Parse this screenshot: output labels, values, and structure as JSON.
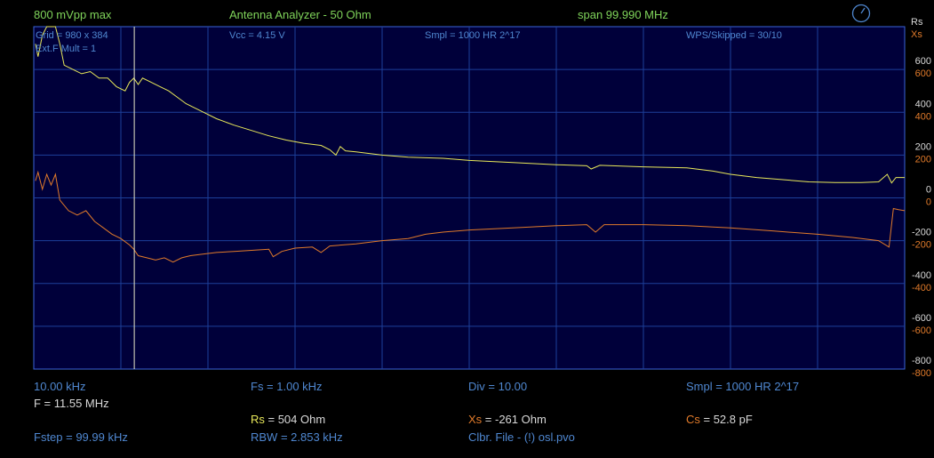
{
  "header": {
    "level": "800 mVpp max",
    "title": "Antenna Analyzer - 50 Ohm",
    "span": "span 99.990 MHz"
  },
  "overlay": {
    "grid_size": "Grid = 980 x 384",
    "ext_mult": "Ext.F Mult = 1",
    "vcc": "Vcc = 4.15 V",
    "smpl": "Smpl = 1000 HR 2^17",
    "wps": "WPS/Skipped  = 30/10"
  },
  "footer": {
    "start_freq": "10.00 kHz",
    "fs": "Fs = 1.00 kHz",
    "div": "Div = 10.00",
    "smpl": "Smpl = 1000 HR  2^17",
    "cursor_freq": "F = 11.55 MHz",
    "rs_label": "Rs",
    "rs_value": " = 504 Ohm",
    "xs_label": "Xs",
    "xs_value": " = -261 Ohm",
    "cs_label": "Cs",
    "cs_value": " = 52.8 pF",
    "fstep": "Fstep = 99.99 kHz",
    "rbw": "RBW = 2.853 kHz",
    "calibration": "Clbr. File - (!) osl.pvo"
  },
  "axis": {
    "rs_title": "Rs",
    "xs_title": "Xs"
  },
  "colors": {
    "background": "#000000",
    "plot_bg": "#00003a",
    "grid": "#1d3f9a",
    "border": "#3a64d8",
    "rs_trace": "#e8e85a",
    "xs_trace": "#e07a2a",
    "cursor": "#e8e8c8",
    "rs_axis": "#d8d8d8",
    "xs_axis": "#e07a2a"
  },
  "icons": {
    "corner": "gauge-icon"
  },
  "chart_data": {
    "type": "line",
    "x": {
      "min": 0.01,
      "max": 100.0,
      "unit": "MHz",
      "divisions": 10
    },
    "y": {
      "min": -800,
      "max": 800,
      "divisions": 8
    },
    "ticks_rs": [
      "600",
      "400",
      "200",
      "0",
      "-200",
      "-400",
      "-600",
      "-800"
    ],
    "ticks_xs": [
      "600",
      "400",
      "200",
      "0",
      "-200",
      "-400",
      "-600",
      "-800"
    ],
    "cursor_x": 11.55,
    "series": [
      {
        "name": "Rs",
        "color": "#e8e85a",
        "points": [
          [
            0.2,
            720
          ],
          [
            0.5,
            660
          ],
          [
            1.0,
            760
          ],
          [
            1.5,
            800
          ],
          [
            2.5,
            800
          ],
          [
            3.0,
            720
          ],
          [
            3.5,
            620
          ],
          [
            4.5,
            600
          ],
          [
            5.5,
            580
          ],
          [
            6.5,
            590
          ],
          [
            7.5,
            560
          ],
          [
            8.5,
            560
          ],
          [
            9.5,
            520
          ],
          [
            10.5,
            500
          ],
          [
            11.0,
            540
          ],
          [
            11.5,
            560
          ],
          [
            12.0,
            530
          ],
          [
            12.5,
            560
          ],
          [
            13.5,
            540
          ],
          [
            14.5,
            520
          ],
          [
            15.5,
            500
          ],
          [
            16.5,
            470
          ],
          [
            17.5,
            440
          ],
          [
            19.0,
            410
          ],
          [
            21.0,
            370
          ],
          [
            23.0,
            340
          ],
          [
            25.0,
            315
          ],
          [
            27.0,
            290
          ],
          [
            29.0,
            270
          ],
          [
            31.0,
            255
          ],
          [
            33.0,
            245
          ],
          [
            34.0,
            225
          ],
          [
            34.7,
            200
          ],
          [
            35.2,
            240
          ],
          [
            35.8,
            220
          ],
          [
            37.0,
            215
          ],
          [
            40.0,
            200
          ],
          [
            43.0,
            190
          ],
          [
            47.0,
            185
          ],
          [
            50.0,
            175
          ],
          [
            55.0,
            165
          ],
          [
            60.0,
            155
          ],
          [
            63.5,
            150
          ],
          [
            64.0,
            135
          ],
          [
            65.0,
            152
          ],
          [
            70.0,
            145
          ],
          [
            75.0,
            140
          ],
          [
            78.0,
            125
          ],
          [
            80.0,
            110
          ],
          [
            83.0,
            95
          ],
          [
            86.0,
            85
          ],
          [
            89.0,
            75
          ],
          [
            92.0,
            72
          ],
          [
            95.0,
            72
          ],
          [
            97.0,
            75
          ],
          [
            98.0,
            110
          ],
          [
            98.5,
            70
          ],
          [
            99.0,
            95
          ],
          [
            100.0,
            95
          ]
        ]
      },
      {
        "name": "Xs",
        "color": "#e07a2a",
        "points": [
          [
            0.2,
            80
          ],
          [
            0.5,
            120
          ],
          [
            1.0,
            40
          ],
          [
            1.5,
            110
          ],
          [
            2.0,
            60
          ],
          [
            2.5,
            110
          ],
          [
            3.0,
            -10
          ],
          [
            4.0,
            -60
          ],
          [
            5.0,
            -80
          ],
          [
            6.0,
            -60
          ],
          [
            7.0,
            -110
          ],
          [
            8.0,
            -140
          ],
          [
            9.0,
            -170
          ],
          [
            10.0,
            -190
          ],
          [
            11.0,
            -220
          ],
          [
            11.5,
            -240
          ],
          [
            12.0,
            -270
          ],
          [
            13.0,
            -280
          ],
          [
            14.0,
            -290
          ],
          [
            15.0,
            -280
          ],
          [
            16.0,
            -300
          ],
          [
            17.0,
            -280
          ],
          [
            18.0,
            -270
          ],
          [
            19.0,
            -265
          ],
          [
            21.0,
            -255
          ],
          [
            23.0,
            -250
          ],
          [
            25.0,
            -245
          ],
          [
            27.0,
            -240
          ],
          [
            27.5,
            -275
          ],
          [
            28.5,
            -250
          ],
          [
            30.0,
            -235
          ],
          [
            32.0,
            -230
          ],
          [
            33.0,
            -255
          ],
          [
            34.0,
            -225
          ],
          [
            37.0,
            -215
          ],
          [
            40.0,
            -200
          ],
          [
            43.0,
            -190
          ],
          [
            45.0,
            -170
          ],
          [
            47.0,
            -160
          ],
          [
            50.0,
            -150
          ],
          [
            55.0,
            -140
          ],
          [
            60.0,
            -130
          ],
          [
            63.5,
            -125
          ],
          [
            64.5,
            -160
          ],
          [
            65.5,
            -125
          ],
          [
            70.0,
            -125
          ],
          [
            75.0,
            -130
          ],
          [
            80.0,
            -140
          ],
          [
            85.0,
            -155
          ],
          [
            90.0,
            -170
          ],
          [
            94.0,
            -185
          ],
          [
            97.0,
            -200
          ],
          [
            98.2,
            -230
          ],
          [
            98.7,
            -50
          ],
          [
            99.3,
            -55
          ],
          [
            100.0,
            -60
          ]
        ]
      }
    ]
  }
}
